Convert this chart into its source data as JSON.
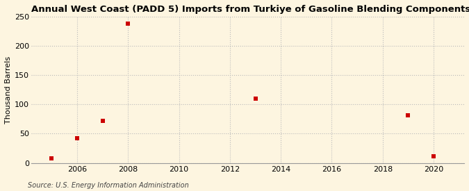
{
  "title": "Annual West Coast (PADD 5) Imports from Turkiye of Gasoline Blending Components",
  "ylabel": "Thousand Barrels",
  "source": "Source: U.S. Energy Information Administration",
  "xlim": [
    2004.2,
    2021.2
  ],
  "ylim": [
    0,
    250
  ],
  "yticks": [
    0,
    50,
    100,
    150,
    200,
    250
  ],
  "xticks": [
    2006,
    2008,
    2010,
    2012,
    2014,
    2016,
    2018,
    2020
  ],
  "data_x": [
    2005,
    2006,
    2007,
    2008,
    2013,
    2019,
    2020
  ],
  "data_y": [
    8,
    42,
    72,
    238,
    110,
    82,
    12
  ],
  "marker_color": "#cc0000",
  "marker": "s",
  "marker_size": 4,
  "bg_color": "#fdf5e0",
  "title_fontsize": 9.5,
  "label_fontsize": 8,
  "tick_fontsize": 8,
  "source_fontsize": 7,
  "grid_color": "#bbbbbb",
  "grid_linestyle": ":",
  "grid_linewidth": 0.8
}
